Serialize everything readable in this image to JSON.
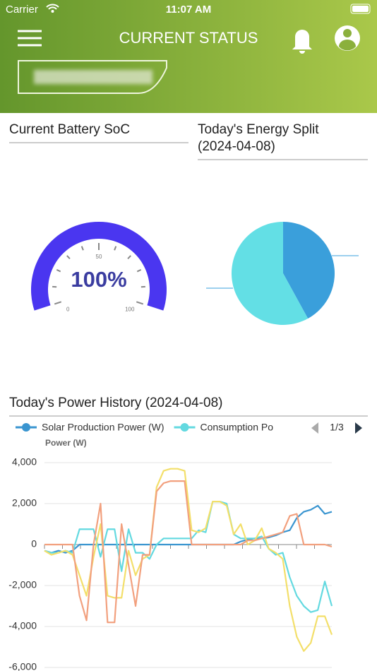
{
  "status_bar": {
    "carrier": "Carrier",
    "time": "11:07 AM"
  },
  "header": {
    "title": "CURRENT STATUS"
  },
  "chart_data": [
    {
      "type": "gauge",
      "title": "Current Battery SoC",
      "value": 100,
      "value_label": "100%",
      "range": [
        0,
        100
      ],
      "ticks": [
        0,
        50,
        100
      ],
      "color": "#4a36f0"
    },
    {
      "type": "pie",
      "title": "Today's Energy Split (2024-04-08)",
      "values": [
        42,
        58
      ],
      "colors": [
        "#3a9fdb",
        "#63dfe5"
      ]
    },
    {
      "type": "line",
      "title": "Today's Power History (2024-04-08)",
      "y_label": "Power (W)",
      "legend_page": "1/3",
      "ylim": [
        -6000,
        4000
      ],
      "yticks": [
        {
          "value": -6000,
          "label": "-6,000"
        },
        {
          "value": -4000,
          "label": "-4,000"
        },
        {
          "value": -2000,
          "label": "-2,000"
        },
        0,
        {
          "value": 2000,
          "label": "2,000"
        },
        {
          "value": 4000,
          "label": "4,000"
        }
      ],
      "grid": true,
      "series": [
        {
          "name": "Solar Production Power (W)",
          "color": "#3a95d0",
          "values": [
            -300,
            -400,
            -300,
            -400,
            -300,
            0,
            0,
            0,
            0,
            0,
            0,
            0,
            0,
            0,
            0,
            0,
            0,
            0,
            0,
            0,
            0,
            0,
            0,
            0,
            0,
            0,
            0,
            0,
            150,
            250,
            300,
            300,
            350,
            450,
            600,
            700,
            1300,
            1600,
            1700,
            1900,
            1500,
            1600
          ]
        },
        {
          "name": "Consumption Po",
          "color": "#63d9e0",
          "values": [
            -300,
            -400,
            -400,
            -300,
            -400,
            750,
            750,
            750,
            -600,
            750,
            750,
            -1300,
            750,
            -400,
            -400,
            -700,
            0,
            300,
            300,
            300,
            300,
            300,
            700,
            600,
            2100,
            2100,
            2000,
            500,
            300,
            300,
            300,
            400,
            -200,
            -500,
            -400,
            -1600,
            -2500,
            -3000,
            -3300,
            -3200,
            -1800,
            -3000
          ]
        },
        {
          "color": "#f3df6a",
          "values": [
            -300,
            -500,
            -400,
            -300,
            -500,
            -1500,
            -2500,
            -600,
            1000,
            -2500,
            -2600,
            -2600,
            -300,
            -1500,
            -700,
            -500,
            2800,
            3600,
            3700,
            3700,
            3600,
            700,
            600,
            800,
            2100,
            2100,
            1900,
            500,
            1000,
            0,
            200,
            800,
            -200,
            -400,
            -700,
            -3000,
            -4500,
            -5200,
            -4800,
            -3500,
            -3500,
            -4400
          ]
        },
        {
          "color": "#f2a07e",
          "values": [
            0,
            0,
            0,
            0,
            0,
            -2500,
            -3700,
            0,
            2000,
            -3800,
            -3800,
            1000,
            -1000,
            -3000,
            -500,
            -500,
            2600,
            3000,
            3100,
            3100,
            3100,
            0,
            0,
            0,
            0,
            0,
            0,
            0,
            0,
            200,
            200,
            300,
            400,
            500,
            600,
            1400,
            1500,
            0,
            0,
            0,
            0,
            -100
          ]
        }
      ]
    }
  ]
}
